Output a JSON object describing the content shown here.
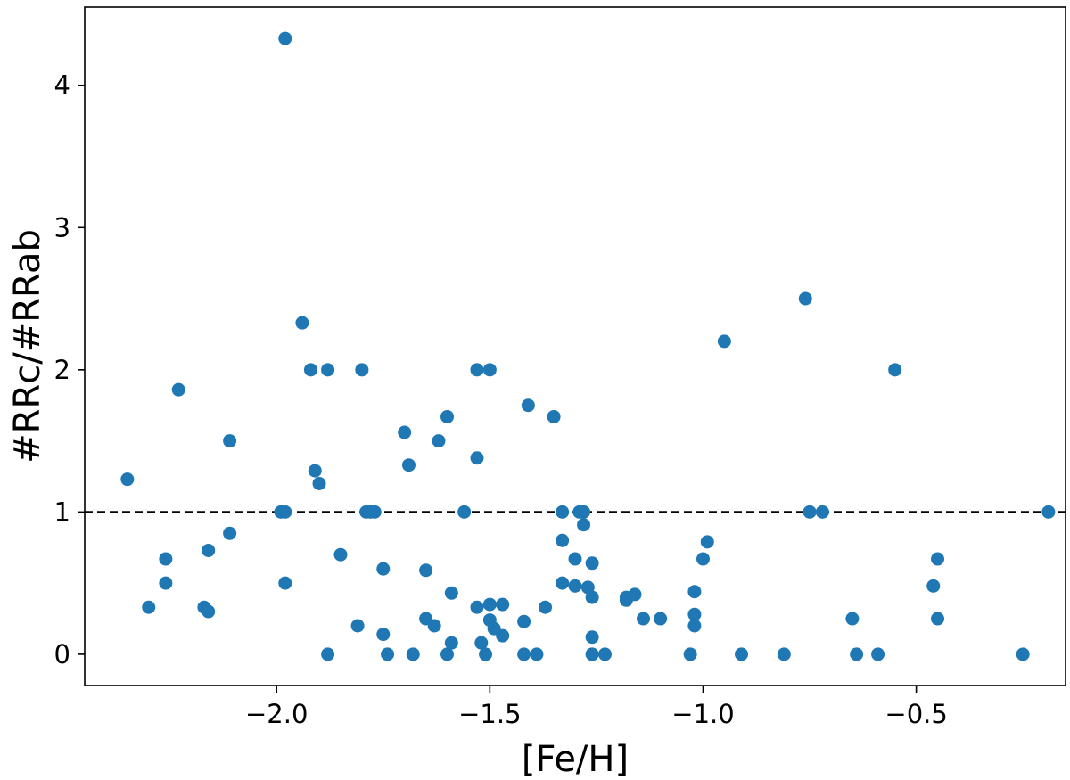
{
  "chart_data": {
    "type": "scatter",
    "xlabel": "[Fe/H]",
    "ylabel": "#RRc/#RRab",
    "xlim": [
      -2.45,
      -0.15
    ],
    "ylim": [
      -0.22,
      4.55
    ],
    "x_ticks": [
      -2.0,
      -1.5,
      -1.0,
      -0.5
    ],
    "x_tick_labels": [
      "−2.0",
      "−1.5",
      "−1.0",
      "−0.5"
    ],
    "y_ticks": [
      0,
      1,
      2,
      3,
      4
    ],
    "y_tick_labels": [
      "0",
      "1",
      "2",
      "3",
      "4"
    ],
    "grid": false,
    "marker_color": "#1f77b4",
    "reference_line": {
      "y": 1,
      "style": "dashed",
      "color": "#000000"
    },
    "points": [
      {
        "x": -2.35,
        "y": 1.23
      },
      {
        "x": -2.3,
        "y": 0.33
      },
      {
        "x": -2.26,
        "y": 0.67
      },
      {
        "x": -2.26,
        "y": 0.5
      },
      {
        "x": -2.23,
        "y": 1.86
      },
      {
        "x": -2.17,
        "y": 0.33
      },
      {
        "x": -2.16,
        "y": 0.73
      },
      {
        "x": -2.16,
        "y": 0.3
      },
      {
        "x": -2.11,
        "y": 1.5
      },
      {
        "x": -2.11,
        "y": 0.85
      },
      {
        "x": -1.98,
        "y": 4.33
      },
      {
        "x": -1.99,
        "y": 1.0
      },
      {
        "x": -1.98,
        "y": 1.0
      },
      {
        "x": -1.98,
        "y": 0.5
      },
      {
        "x": -1.94,
        "y": 2.33
      },
      {
        "x": -1.92,
        "y": 2.0
      },
      {
        "x": -1.91,
        "y": 1.29
      },
      {
        "x": -1.9,
        "y": 1.2
      },
      {
        "x": -1.88,
        "y": 2.0
      },
      {
        "x": -1.88,
        "y": 0.0
      },
      {
        "x": -1.85,
        "y": 0.7
      },
      {
        "x": -1.81,
        "y": 0.2
      },
      {
        "x": -1.8,
        "y": 2.0
      },
      {
        "x": -1.79,
        "y": 1.0
      },
      {
        "x": -1.78,
        "y": 1.0
      },
      {
        "x": -1.77,
        "y": 1.0
      },
      {
        "x": -1.75,
        "y": 0.6
      },
      {
        "x": -1.75,
        "y": 0.14
      },
      {
        "x": -1.74,
        "y": 0.0
      },
      {
        "x": -1.7,
        "y": 1.56
      },
      {
        "x": -1.69,
        "y": 1.33
      },
      {
        "x": -1.68,
        "y": 0.0
      },
      {
        "x": -1.65,
        "y": 0.59
      },
      {
        "x": -1.65,
        "y": 0.25
      },
      {
        "x": -1.63,
        "y": 0.2
      },
      {
        "x": -1.62,
        "y": 1.5
      },
      {
        "x": -1.6,
        "y": 1.67
      },
      {
        "x": -1.6,
        "y": 0.0
      },
      {
        "x": -1.59,
        "y": 0.43
      },
      {
        "x": -1.59,
        "y": 0.08
      },
      {
        "x": -1.56,
        "y": 1.0
      },
      {
        "x": -1.53,
        "y": 2.0
      },
      {
        "x": -1.53,
        "y": 1.38
      },
      {
        "x": -1.53,
        "y": 0.33
      },
      {
        "x": -1.52,
        "y": 0.08
      },
      {
        "x": -1.51,
        "y": 0.0
      },
      {
        "x": -1.5,
        "y": 2.0
      },
      {
        "x": -1.5,
        "y": 0.35
      },
      {
        "x": -1.5,
        "y": 0.24
      },
      {
        "x": -1.49,
        "y": 0.18
      },
      {
        "x": -1.47,
        "y": 0.35
      },
      {
        "x": -1.47,
        "y": 0.13
      },
      {
        "x": -1.42,
        "y": 0.23
      },
      {
        "x": -1.42,
        "y": 0.0
      },
      {
        "x": -1.41,
        "y": 1.75
      },
      {
        "x": -1.39,
        "y": 0.0
      },
      {
        "x": -1.37,
        "y": 0.33
      },
      {
        "x": -1.35,
        "y": 1.67
      },
      {
        "x": -1.33,
        "y": 1.0
      },
      {
        "x": -1.33,
        "y": 0.8
      },
      {
        "x": -1.33,
        "y": 0.5
      },
      {
        "x": -1.3,
        "y": 0.67
      },
      {
        "x": -1.3,
        "y": 0.48
      },
      {
        "x": -1.29,
        "y": 1.0
      },
      {
        "x": -1.28,
        "y": 1.0
      },
      {
        "x": -1.28,
        "y": 0.91
      },
      {
        "x": -1.27,
        "y": 0.47
      },
      {
        "x": -1.26,
        "y": 0.64
      },
      {
        "x": -1.26,
        "y": 0.4
      },
      {
        "x": -1.26,
        "y": 0.12
      },
      {
        "x": -1.26,
        "y": 0.0
      },
      {
        "x": -1.23,
        "y": 0.0
      },
      {
        "x": -1.18,
        "y": 0.38
      },
      {
        "x": -1.18,
        "y": 0.4
      },
      {
        "x": -1.16,
        "y": 0.42
      },
      {
        "x": -1.14,
        "y": 0.25
      },
      {
        "x": -1.1,
        "y": 0.25
      },
      {
        "x": -1.03,
        "y": 0.0
      },
      {
        "x": -1.02,
        "y": 0.44
      },
      {
        "x": -1.02,
        "y": 0.28
      },
      {
        "x": -1.02,
        "y": 0.2
      },
      {
        "x": -1.0,
        "y": 0.67
      },
      {
        "x": -0.99,
        "y": 0.79
      },
      {
        "x": -0.95,
        "y": 2.2
      },
      {
        "x": -0.91,
        "y": 0.0
      },
      {
        "x": -0.81,
        "y": 0.0
      },
      {
        "x": -0.76,
        "y": 2.5
      },
      {
        "x": -0.75,
        "y": 1.0
      },
      {
        "x": -0.72,
        "y": 1.0
      },
      {
        "x": -0.65,
        "y": 0.25
      },
      {
        "x": -0.64,
        "y": 0.0
      },
      {
        "x": -0.59,
        "y": 0.0
      },
      {
        "x": -0.55,
        "y": 2.0
      },
      {
        "x": -0.46,
        "y": 0.48
      },
      {
        "x": -0.45,
        "y": 0.67
      },
      {
        "x": -0.45,
        "y": 0.25
      },
      {
        "x": -0.25,
        "y": 0.0
      },
      {
        "x": -0.19,
        "y": 1.0
      }
    ]
  }
}
